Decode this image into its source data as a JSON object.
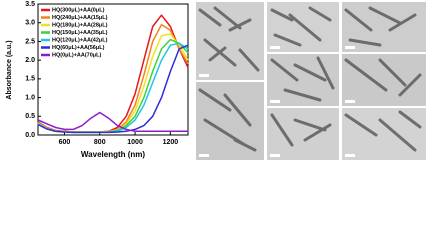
{
  "chart_data": {
    "type": "line",
    "xlabel": "Wavelength (nm)",
    "ylabel": "Absorbance (a.u.)",
    "x": [
      450,
      500,
      550,
      600,
      650,
      700,
      750,
      800,
      850,
      900,
      950,
      1000,
      1050,
      1100,
      1150,
      1200,
      1250,
      1300
    ],
    "xlim": [
      450,
      1300
    ],
    "xticks": [
      600,
      800,
      1000,
      1200
    ],
    "ylim": [
      0,
      3.5
    ],
    "yticks": [
      {
        "value": 0,
        "label": "0.0"
      },
      0.5,
      {
        "value": 1,
        "label": "1.0"
      },
      1.5,
      {
        "value": 2,
        "label": "2.0"
      },
      2.5,
      {
        "value": 3,
        "label": "3.0"
      },
      3.5
    ],
    "legend": "upper-left",
    "series": [
      {
        "name": "HQ(300μL)+AA(0μL)",
        "color": "#e8161b",
        "values": [
          0.35,
          0.2,
          0.12,
          0.1,
          0.08,
          0.08,
          0.08,
          0.08,
          0.1,
          0.2,
          0.5,
          1.1,
          2.0,
          2.9,
          3.2,
          2.9,
          2.3,
          1.8
        ]
      },
      {
        "name": "HQ(240μL)+AA(15μL)",
        "color": "#f5821f",
        "values": [
          0.33,
          0.19,
          0.11,
          0.09,
          0.08,
          0.08,
          0.08,
          0.08,
          0.09,
          0.15,
          0.35,
          0.8,
          1.6,
          2.5,
          2.95,
          2.8,
          2.3,
          1.9
        ]
      },
      {
        "name": "HQ(180μL)+AA(28μL)",
        "color": "#f2e21b",
        "values": [
          0.32,
          0.18,
          0.11,
          0.09,
          0.08,
          0.08,
          0.08,
          0.08,
          0.09,
          0.13,
          0.3,
          0.65,
          1.3,
          2.1,
          2.65,
          2.7,
          2.4,
          2.0
        ]
      },
      {
        "name": "HQ(150μL)+AA(35μL)",
        "color": "#3ed13a",
        "values": [
          0.3,
          0.17,
          0.1,
          0.08,
          0.07,
          0.07,
          0.07,
          0.07,
          0.08,
          0.12,
          0.25,
          0.5,
          1.0,
          1.7,
          2.3,
          2.55,
          2.45,
          2.2
        ]
      },
      {
        "name": "HQ(120μL)+AA(42μL)",
        "color": "#22c3e6",
        "values": [
          0.3,
          0.17,
          0.1,
          0.08,
          0.07,
          0.07,
          0.07,
          0.07,
          0.08,
          0.1,
          0.2,
          0.4,
          0.8,
          1.4,
          2.0,
          2.4,
          2.45,
          2.3
        ]
      },
      {
        "name": "HQ(60μL)+AA(56μL)",
        "color": "#2c2fd6",
        "values": [
          0.28,
          0.16,
          0.1,
          0.08,
          0.07,
          0.07,
          0.07,
          0.07,
          0.07,
          0.08,
          0.1,
          0.15,
          0.25,
          0.5,
          1.0,
          1.7,
          2.3,
          2.4
        ]
      },
      {
        "name": "HQ(0μL)+AA(70μL)",
        "color": "#8b1fc9",
        "values": [
          0.4,
          0.3,
          0.2,
          0.15,
          0.15,
          0.25,
          0.45,
          0.6,
          0.45,
          0.25,
          0.15,
          0.1,
          0.1,
          0.1,
          0.1,
          0.1,
          0.1,
          0.1
        ]
      }
    ]
  }
}
